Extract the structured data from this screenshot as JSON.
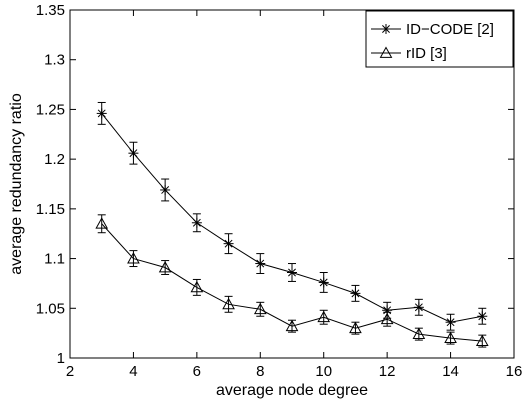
{
  "chart_data": {
    "type": "line",
    "xlabel": "average node degree",
    "ylabel": "average redundancy ratio",
    "xlim": [
      2,
      16
    ],
    "ylim": [
      1,
      1.35
    ],
    "x_ticks": [
      2,
      4,
      6,
      8,
      10,
      12,
      14,
      16
    ],
    "y_ticks": [
      1,
      1.05,
      1.1,
      1.15,
      1.2,
      1.25,
      1.3,
      1.35
    ],
    "grid": false,
    "legend_position": "top-right",
    "x": [
      3,
      4,
      5,
      6,
      7,
      8,
      9,
      10,
      11,
      12,
      13,
      14,
      15
    ],
    "series": [
      {
        "name": "ID−CODE [2]",
        "marker": "asterisk",
        "color": "#000000",
        "values": [
          1.246,
          1.206,
          1.169,
          1.136,
          1.115,
          1.095,
          1.086,
          1.076,
          1.065,
          1.048,
          1.051,
          1.036,
          1.042
        ],
        "errors": [
          0.011,
          0.011,
          0.011,
          0.009,
          0.01,
          0.01,
          0.009,
          0.01,
          0.008,
          0.008,
          0.008,
          0.008,
          0.008
        ]
      },
      {
        "name": "rID [3]",
        "marker": "triangle",
        "color": "#000000",
        "values": [
          1.135,
          1.1,
          1.091,
          1.071,
          1.054,
          1.049,
          1.032,
          1.041,
          1.03,
          1.039,
          1.024,
          1.02,
          1.017
        ],
        "errors": [
          0.009,
          0.008,
          0.007,
          0.008,
          0.008,
          0.007,
          0.006,
          0.007,
          0.006,
          0.007,
          0.006,
          0.006,
          0.006
        ]
      }
    ]
  }
}
